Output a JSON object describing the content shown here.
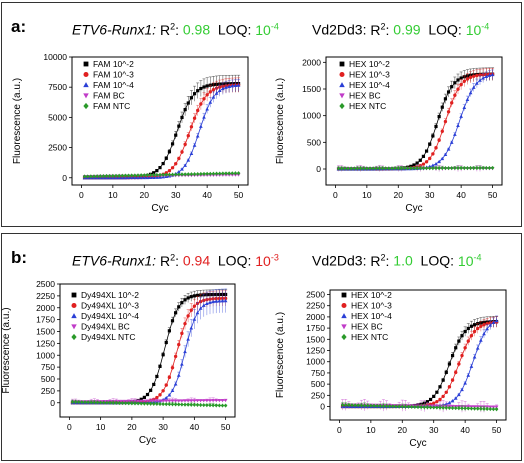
{
  "panels": [
    {
      "label": "a:",
      "left": {
        "gene": "ETV6-Runx1:",
        "r2_label": "R",
        "r2_sup": "2",
        "r2_colon": ":",
        "r2_value": "0.98",
        "r2_color": "#33cc33",
        "loq_label": "LOQ:",
        "loq_base": "10",
        "loq_exp": "-4",
        "loq_color": "#33cc33"
      },
      "right": {
        "gene": "Vd2Dd3:",
        "r2_label": "R",
        "r2_sup": "2",
        "r2_colon": ":",
        "r2_value": "0.99",
        "r2_color": "#33cc33",
        "loq_label": "LOQ:",
        "loq_base": "10",
        "loq_exp": "-4",
        "loq_color": "#33cc33"
      }
    },
    {
      "label": "b:",
      "left": {
        "gene": "ETV6-Runx1:",
        "r2_label": "R",
        "r2_sup": "2",
        "r2_colon": ":",
        "r2_value": "0.94",
        "r2_color": "#e02020",
        "loq_label": "LOQ:",
        "loq_base": "10",
        "loq_exp": "-3",
        "loq_color": "#e02020"
      },
      "right": {
        "gene": "Vd2Dd3:",
        "r2_label": "R",
        "r2_sup": "2",
        "r2_colon": ":",
        "r2_value": "1.0",
        "r2_color": "#33cc33",
        "loq_label": "LOQ:",
        "loq_base": "10",
        "loq_exp": "-4",
        "loq_color": "#33cc33"
      }
    }
  ],
  "chart_data": [
    {
      "type": "line",
      "panel": "a",
      "xlabel": "Cyc",
      "ylabel": "Fluorescence (a.u.)",
      "xlim": [
        -3,
        53
      ],
      "ylim": [
        -600,
        10000
      ],
      "xticks": [
        0,
        10,
        20,
        30,
        40,
        50
      ],
      "yticks": [
        0,
        2500,
        5000,
        7500,
        10000
      ],
      "legend_position": "top-left",
      "series": [
        {
          "name": "FAM 10^-2",
          "color": "#000000",
          "marker": "square",
          "ct": 30.5,
          "plateau": 7800,
          "slope": 2.6,
          "err": 700
        },
        {
          "name": "FAM 10^-3",
          "color": "#e02020",
          "marker": "circle",
          "ct": 34.5,
          "plateau": 7700,
          "slope": 2.6,
          "err": 600
        },
        {
          "name": "FAM 10^-4",
          "color": "#2a3fd6",
          "marker": "triangle-up",
          "ct": 37.5,
          "plateau": 7700,
          "slope": 2.4,
          "err": 500
        },
        {
          "name": "FAM BC",
          "color": "#c03cc8",
          "marker": "triangle-down",
          "flat": 100,
          "drift": 150,
          "err": 80
        },
        {
          "name": "FAM NTC",
          "color": "#2a9a2a",
          "marker": "diamond",
          "flat": 100,
          "drift": 280,
          "err": 60
        }
      ]
    },
    {
      "type": "line",
      "panel": "a",
      "xlabel": "Cyc",
      "ylabel": "Fluorescence (a.u.)",
      "xlim": [
        -3,
        53
      ],
      "ylim": [
        -300,
        2100
      ],
      "xticks": [
        0,
        10,
        20,
        30,
        40,
        50
      ],
      "yticks": [
        0,
        500,
        1000,
        1500,
        2000
      ],
      "legend_position": "top-left",
      "series": [
        {
          "name": "HEX 10^-2",
          "color": "#000000",
          "marker": "square",
          "ct": 32.5,
          "plateau": 1780,
          "slope": 2.4,
          "err": 120
        },
        {
          "name": "HEX 10^-3",
          "color": "#e02020",
          "marker": "circle",
          "ct": 35.0,
          "plateau": 1780,
          "slope": 2.4,
          "err": 110
        },
        {
          "name": "HEX 10^-4",
          "color": "#2a3fd6",
          "marker": "triangle-up",
          "ct": 39.5,
          "plateau": 1800,
          "slope": 2.6,
          "err": 90
        },
        {
          "name": "HEX BC",
          "color": "#c03cc8",
          "marker": "triangle-down",
          "flat": 10,
          "drift": 0,
          "err": 60
        },
        {
          "name": "HEX NTC",
          "color": "#2a9a2a",
          "marker": "diamond",
          "flat": 10,
          "drift": 10,
          "err": 40
        }
      ]
    },
    {
      "type": "line",
      "panel": "b",
      "xlabel": "Cyc",
      "ylabel": "Fluorescence (a.u.)",
      "xlim": [
        -3,
        53
      ],
      "ylim": [
        -300,
        2500
      ],
      "xticks": [
        0,
        10,
        20,
        30,
        40,
        50
      ],
      "yticks": [
        0,
        250,
        500,
        750,
        1000,
        1250,
        1500,
        1750,
        2000,
        2250,
        2500
      ],
      "legend_position": "top-left",
      "series": [
        {
          "name": "Dy494XL 10^-2",
          "color": "#000000",
          "marker": "square",
          "ct": 30.5,
          "plateau": 2280,
          "slope": 2.2,
          "err": 100
        },
        {
          "name": "Dy494XL 10^-3",
          "color": "#e02020",
          "marker": "circle",
          "ct": 34.5,
          "plateau": 2200,
          "slope": 2.2,
          "err": 160
        },
        {
          "name": "Dy494XL 10^-4",
          "color": "#2a3fd6",
          "marker": "triangle-up",
          "ct": 37.0,
          "plateau": 2150,
          "slope": 2.0,
          "err": 250
        },
        {
          "name": "Dy494XL BC",
          "color": "#c03cc8",
          "marker": "triangle-down",
          "flat": 20,
          "drift": 30,
          "err": 60
        },
        {
          "name": "Dy494XL NTC",
          "color": "#2a9a2a",
          "marker": "diamond",
          "flat": 20,
          "drift": -80,
          "err": 40
        }
      ]
    },
    {
      "type": "line",
      "panel": "b",
      "xlabel": "Cyc",
      "ylabel": "Fluorescence (a.u.)",
      "xlim": [
        -3,
        53
      ],
      "ylim": [
        -300,
        2600
      ],
      "xticks": [
        0,
        10,
        20,
        30,
        40,
        50
      ],
      "yticks": [
        0,
        250,
        500,
        750,
        1000,
        1250,
        1500,
        1750,
        2000,
        2250,
        2500
      ],
      "legend_position": "top-left",
      "series": [
        {
          "name": "HEX 10^-2",
          "color": "#000000",
          "marker": "square",
          "ct": 35.0,
          "plateau": 1900,
          "slope": 2.5,
          "err": 120
        },
        {
          "name": "HEX 10^-3",
          "color": "#e02020",
          "marker": "circle",
          "ct": 38.0,
          "plateau": 1900,
          "slope": 2.5,
          "err": 120
        },
        {
          "name": "HEX 10^-4",
          "color": "#2a3fd6",
          "marker": "triangle-up",
          "ct": 42.5,
          "plateau": 2000,
          "slope": 2.4,
          "err": 110
        },
        {
          "name": "HEX BC",
          "color": "#c03cc8",
          "marker": "triangle-down",
          "flat": 40,
          "drift": -50,
          "err": 130
        },
        {
          "name": "HEX NTC",
          "color": "#2a9a2a",
          "marker": "diamond",
          "flat": 40,
          "drift": -100,
          "err": 60
        }
      ]
    }
  ]
}
